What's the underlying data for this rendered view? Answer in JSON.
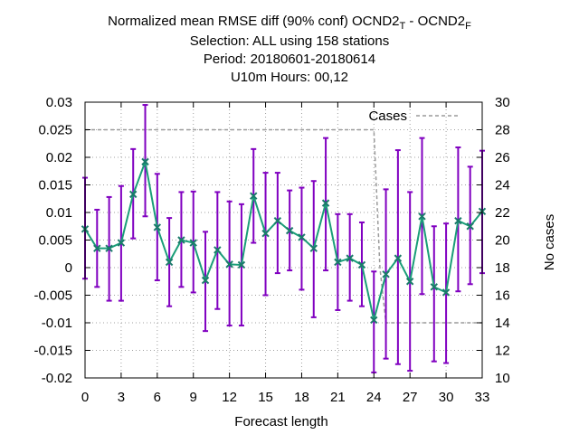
{
  "chart_data": {
    "type": "line",
    "title_lines": [
      {
        "main": "Normalized mean RMSE diff (90% conf) OCND2",
        "sub1": "T",
        "mid": " - OCND2",
        "sub2": "F"
      },
      {
        "text": "Selection: ALL using   158 stations"
      },
      {
        "text": "Period: 20180601-20180614"
      },
      {
        "text": "U10m   Hours:  00,12"
      }
    ],
    "xlabel": "Forecast length",
    "ylabel_left": "",
    "ylabel_right": "No cases",
    "xlim": [
      0,
      33
    ],
    "ylim_left": [
      -0.02,
      0.03
    ],
    "ylim_right": [
      10,
      30
    ],
    "x_ticks": [
      "0",
      "3",
      "6",
      "9",
      "12",
      "15",
      "18",
      "21",
      "24",
      "27",
      "30",
      "33"
    ],
    "y_ticks_left": [
      "-0.02",
      "-0.015",
      "-0.01",
      "-0.005",
      "0",
      "0.005",
      "0.01",
      "0.015",
      "0.02",
      "0.025",
      "0.03"
    ],
    "y_ticks_right": [
      "10",
      "12",
      "14",
      "16",
      "18",
      "20",
      "22",
      "24",
      "26",
      "28",
      "30"
    ],
    "legend": {
      "label": "Cases",
      "placement": "top-right"
    },
    "colors": {
      "line": "#1a9e78",
      "errorbar": "#8000c0",
      "cases": "#9a9a9a",
      "marker": "#1a7a6a"
    },
    "series": [
      {
        "x": [
          0,
          1,
          2,
          3,
          4,
          5,
          6,
          7,
          8,
          9,
          10,
          11,
          12,
          13,
          14,
          15,
          16,
          17,
          18,
          19,
          20,
          21,
          22,
          23,
          24,
          25,
          26,
          27,
          28,
          29,
          30,
          31,
          32,
          33
        ],
        "values": [
          0.007,
          0.0035,
          0.0035,
          0.0045,
          0.0133,
          0.0192,
          0.0073,
          0.001,
          0.005,
          0.0045,
          -0.0023,
          0.0032,
          0.0006,
          0.0005,
          0.013,
          0.0062,
          0.0085,
          0.0067,
          0.0055,
          0.0035,
          0.0117,
          0.001,
          0.0017,
          0.0005,
          -0.0095,
          -0.0012,
          0.0017,
          -0.0025,
          0.0093,
          -0.0035,
          -0.0045,
          0.0085,
          0.0075,
          0.0102
        ],
        "err_low": [
          -0.002,
          -0.0035,
          -0.006,
          -0.006,
          0.0053,
          0.0093,
          -0.0023,
          -0.007,
          -0.0035,
          -0.0045,
          -0.0115,
          -0.0075,
          -0.0105,
          -0.0105,
          0.0045,
          -0.005,
          -0.001,
          -0.0005,
          -0.004,
          -0.009,
          -0.0005,
          -0.0077,
          -0.006,
          -0.007,
          -0.019,
          -0.0165,
          -0.0175,
          -0.0187,
          -0.0048,
          -0.017,
          -0.0173,
          -0.0043,
          -0.003,
          -0.001
        ],
        "err_high": [
          0.0163,
          0.0105,
          0.0128,
          0.0148,
          0.0215,
          0.0295,
          0.017,
          0.009,
          0.0137,
          0.0138,
          0.0065,
          0.0137,
          0.012,
          0.0115,
          0.0215,
          0.0172,
          0.0172,
          0.014,
          0.0145,
          0.0157,
          0.0235,
          0.0097,
          0.0097,
          0.0082,
          -0.0007,
          0.0142,
          0.0213,
          0.0137,
          0.0235,
          0.0075,
          0.008,
          0.0218,
          0.0183,
          0.0212
        ]
      }
    ],
    "cases_series": {
      "name": "Cases",
      "x": [
        0,
        24,
        24.5,
        25,
        33
      ],
      "values": [
        28,
        28,
        18,
        14,
        14
      ]
    }
  }
}
